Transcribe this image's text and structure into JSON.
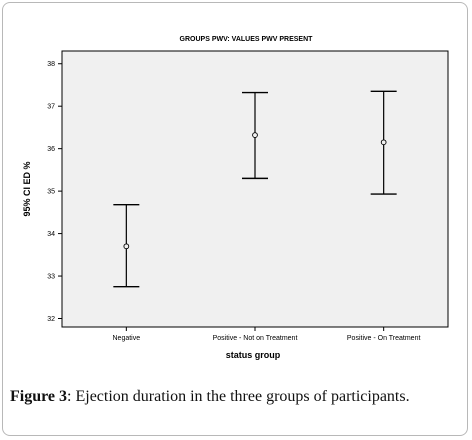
{
  "chart_data": {
    "type": "errorbar",
    "title": "GROUPS PWV: VALUES PWV PRESENT",
    "xlabel": "status group",
    "ylabel": "95% CI ED %",
    "categories": [
      "Negative",
      "Positive - Not on Treatment",
      "Positive - On Treatment"
    ],
    "means": [
      33.7,
      36.32,
      36.15
    ],
    "lower": [
      32.75,
      35.3,
      34.93
    ],
    "upper": [
      34.68,
      37.32,
      37.35
    ],
    "ylim": [
      31.8,
      38.3
    ],
    "yticks": [
      32,
      33,
      34,
      35,
      36,
      37,
      38
    ],
    "grid": false,
    "colors": {
      "plot_bg": "#f0f0f0",
      "ink": "#000000"
    }
  },
  "caption": {
    "label": "Figure 3",
    "text": ": Ejection duration in the three groups of participants."
  }
}
